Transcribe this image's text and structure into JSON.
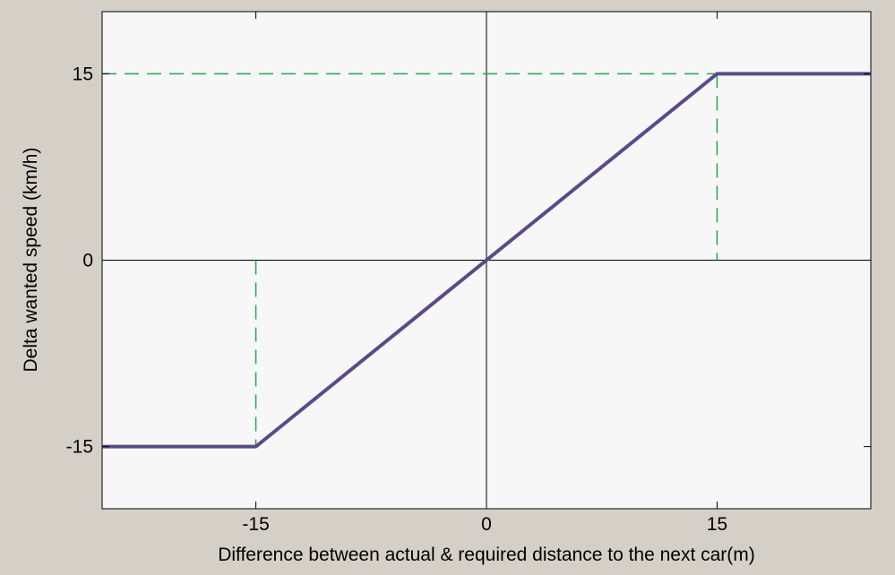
{
  "colors": {
    "figure_background": "#d4d0c8",
    "plot_background": "#f7f7f7",
    "axis_lines": "#000000",
    "main_curve": "#5a4a8a",
    "guide_lines": "#1faa4a"
  },
  "chart_data": {
    "type": "line",
    "title": "",
    "xlabel": "Difference between actual & required distance to the next car(m)",
    "ylabel": "Delta wanted speed (km/h)",
    "xlim": [
      -25,
      25
    ],
    "ylim": [
      -20,
      20
    ],
    "xticks": [
      -15,
      0,
      15
    ],
    "yticks": [
      -15,
      0,
      15
    ],
    "xtick_labels": [
      "-15",
      "0",
      "15"
    ],
    "ytick_labels": [
      "-15",
      "0",
      "15"
    ],
    "grid": false,
    "zero_lines": true,
    "series": [
      {
        "style": "solid",
        "color": "#5a4a8a",
        "x": [
          -25,
          -15,
          15,
          25
        ],
        "y": [
          -15,
          -15,
          15,
          15
        ]
      }
    ],
    "guides": [
      {
        "style": "dashed",
        "color": "#1faa4a",
        "x": [
          -25,
          15
        ],
        "y": [
          15,
          15
        ]
      },
      {
        "style": "dashed",
        "color": "#1faa4a",
        "x": [
          15,
          15
        ],
        "y": [
          15,
          0
        ]
      },
      {
        "style": "dashed",
        "color": "#1faa4a",
        "x": [
          -15,
          -15
        ],
        "y": [
          0,
          -15
        ]
      }
    ]
  }
}
